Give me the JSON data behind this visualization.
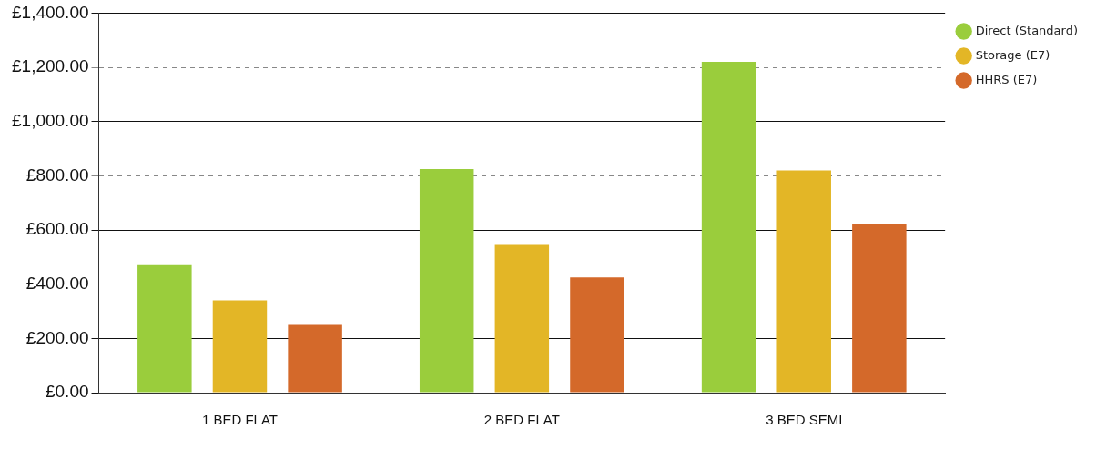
{
  "chart_data": {
    "type": "bar",
    "categories": [
      "1 BED FLAT",
      "2 BED FLAT",
      "3 BED SEMI"
    ],
    "series": [
      {
        "name": "Direct (Standard)",
        "color": "#9acd3c",
        "values": [
          470,
          825,
          1220
        ]
      },
      {
        "name": "Storage (E7)",
        "color": "#e3b626",
        "values": [
          340,
          545,
          820
        ]
      },
      {
        "name": "HHRS (E7)",
        "color": "#d4692a",
        "values": [
          250,
          425,
          620
        ]
      }
    ],
    "ylim": [
      0,
      1400
    ],
    "yticks": [
      {
        "value": 0,
        "label": "£0.00"
      },
      {
        "value": 200,
        "label": "£200.00"
      },
      {
        "value": 400,
        "label": "£400.00"
      },
      {
        "value": 600,
        "label": "£600.00"
      },
      {
        "value": 800,
        "label": "£800.00"
      },
      {
        "value": 1000,
        "label": "£1,000.00"
      },
      {
        "value": 1200,
        "label": "£1,200.00"
      },
      {
        "value": 1400,
        "label": "£1,400.00"
      }
    ],
    "grid": "y",
    "legend": "top right"
  }
}
